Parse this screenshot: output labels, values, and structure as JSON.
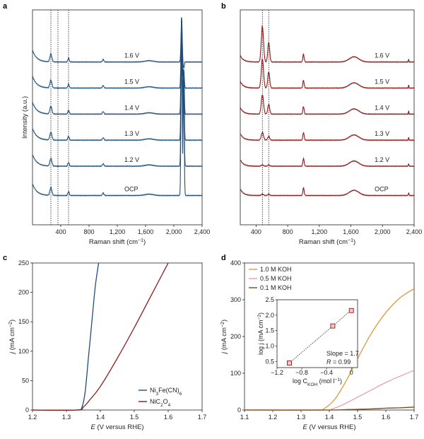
{
  "chart_data": [
    {
      "panel": "a",
      "type": "line",
      "xlabel": "Raman shift (cm",
      "xlabel_sup": "−1",
      "xlabel_end": ")",
      "ylabel": "Intensity (a.u.)",
      "xlim": [
        0,
        2400
      ],
      "xticks": [
        400,
        800,
        1200,
        1600,
        2000,
        2400
      ],
      "xtick_labels": [
        "400",
        "800",
        "1,200",
        "1,600",
        "2,000",
        "2,400"
      ],
      "color": "#1f4e79",
      "dotted_lines_x": [
        260,
        360,
        510
      ],
      "baseline_peaks": [
        [
          260,
          12,
          14
        ],
        [
          510,
          6,
          10
        ],
        [
          1000,
          4,
          10
        ],
        [
          1650,
          2,
          60
        ]
      ],
      "main_peak": {
        "x": 2110,
        "height": 320,
        "x2": 2140,
        "height2": 240
      },
      "series": [
        {
          "name": "1.6 V",
          "offset": 250
        },
        {
          "name": "1.5 V",
          "offset": 210
        },
        {
          "name": "1.4 V",
          "offset": 170
        },
        {
          "name": "1.3 V",
          "offset": 130
        },
        {
          "name": "1.2 V",
          "offset": 90
        },
        {
          "name": "OCP",
          "offset": 45
        }
      ]
    },
    {
      "panel": "b",
      "type": "line",
      "xlabel": "Raman shift (cm",
      "xlabel_sup": "−1",
      "xlabel_end": ")",
      "xlim": [
        200,
        2400
      ],
      "xticks": [
        400,
        800,
        1200,
        1600,
        2000,
        2400
      ],
      "xtick_labels": [
        "400",
        "800",
        "1,200",
        "1,600",
        "2,000",
        "2,400"
      ],
      "color": "#8b1a1a",
      "dotted_lines_x": [
        480,
        560
      ],
      "series": [
        {
          "name": "1.6 V",
          "offset": 250,
          "p480": 55,
          "p560": 30
        },
        {
          "name": "1.5 V",
          "offset": 210,
          "p480": 45,
          "p560": 25
        },
        {
          "name": "1.4 V",
          "offset": 170,
          "p480": 30,
          "p560": 15
        },
        {
          "name": "1.3 V",
          "offset": 130,
          "p480": 12,
          "p560": 6
        },
        {
          "name": "1.2 V",
          "offset": 90,
          "p480": 2,
          "p560": 2
        },
        {
          "name": "OCP",
          "offset": 45,
          "p480": 2,
          "p560": 2
        }
      ]
    },
    {
      "panel": "c",
      "type": "line",
      "xlabel": "E (V versus RHE)",
      "ylabel": "j (mA cm",
      "ylabel_sup": "−2",
      "ylabel_end": ")",
      "xlim": [
        1.2,
        1.7
      ],
      "ylim": [
        0,
        250
      ],
      "xticks": [
        1.2,
        1.3,
        1.4,
        1.5,
        1.6,
        1.7
      ],
      "yticks": [
        0,
        50,
        100,
        150,
        200,
        250
      ],
      "legend_position": "bottom-right",
      "series": [
        {
          "name": "Ni3Fe(CN)6",
          "color": "#1f4e79",
          "x": [
            1.2,
            1.33,
            1.345,
            1.355,
            1.365,
            1.375,
            1.385,
            1.395
          ],
          "y": [
            0,
            0,
            4,
            30,
            90,
            150,
            210,
            250
          ]
        },
        {
          "name": "NiC2O4",
          "color": "#8b1a1a",
          "x": [
            1.2,
            1.33,
            1.35,
            1.37,
            1.4,
            1.45,
            1.5,
            1.55,
            1.6
          ],
          "y": [
            0,
            0,
            5,
            18,
            40,
            88,
            140,
            195,
            250
          ]
        }
      ],
      "legend": [
        {
          "pre": "Ni",
          "sub1": "3",
          "mid": "Fe(CN)",
          "sub2": "6"
        },
        {
          "pre": "NiC",
          "sub1": "2",
          "mid": "O",
          "sub2": "4"
        }
      ]
    },
    {
      "panel": "d",
      "type": "line",
      "xlabel": "E (V versus RHE)",
      "ylabel": "j (mA cm",
      "ylabel_sup": "−2",
      "ylabel_end": ")",
      "xlim": [
        1.1,
        1.7
      ],
      "ylim": [
        0,
        400
      ],
      "xticks": [
        1.1,
        1.2,
        1.3,
        1.4,
        1.5,
        1.6,
        1.7
      ],
      "yticks": [
        0,
        100,
        200,
        300,
        400
      ],
      "legend_position": "top-left",
      "series": [
        {
          "name": "1.0 M KOH",
          "color": "#d89a3a",
          "x": [
            1.1,
            1.35,
            1.38,
            1.42,
            1.46,
            1.5,
            1.55,
            1.6,
            1.65,
            1.7
          ],
          "y": [
            0,
            0,
            3,
            30,
            80,
            140,
            210,
            265,
            305,
            330
          ]
        },
        {
          "name": "0.5 M KOH",
          "color": "#e8a0a8",
          "x": [
            1.1,
            1.38,
            1.41,
            1.45,
            1.5,
            1.55,
            1.6,
            1.65,
            1.7
          ],
          "y": [
            0,
            0,
            3,
            15,
            35,
            55,
            75,
            92,
            108
          ]
        },
        {
          "name": "0.1 M KOH",
          "color": "#7a4a1a",
          "x": [
            1.1,
            1.4,
            1.45,
            1.5,
            1.55,
            1.6,
            1.65,
            1.7
          ],
          "y": [
            0,
            0,
            1,
            2,
            3,
            5,
            6,
            8
          ]
        }
      ],
      "inset": {
        "xlabel": "log C",
        "xlabel_sub": "KOH",
        "xlabel_end": " (mol l",
        "xlabel_sup": "−1",
        "xlabel_close": ")",
        "ylabel": "log j (mA cm",
        "ylabel_sup": "−2",
        "ylabel_end": ")",
        "xlim": [
          -1.2,
          0.1
        ],
        "ylim": [
          0.3,
          2.5
        ],
        "xticks": [
          -1.2,
          -0.8,
          -0.4,
          0
        ],
        "xtick_labels": [
          "−1.2",
          "−0.8",
          "−0.4",
          "0"
        ],
        "yticks": [
          0.5,
          1.0,
          1.5,
          2.0,
          2.5
        ],
        "yticks_labels": [
          "0.5",
          "1.0",
          "1.5",
          "2.0",
          "2.5"
        ],
        "points": [
          {
            "x": -1.0,
            "y": 0.45
          },
          {
            "x": -0.3,
            "y": 1.65
          },
          {
            "x": 0.0,
            "y": 2.15
          }
        ],
        "slope_text": "Slope = 1.7",
        "r_text_label": "R",
        "r_text_value": " = 0.99"
      }
    }
  ]
}
